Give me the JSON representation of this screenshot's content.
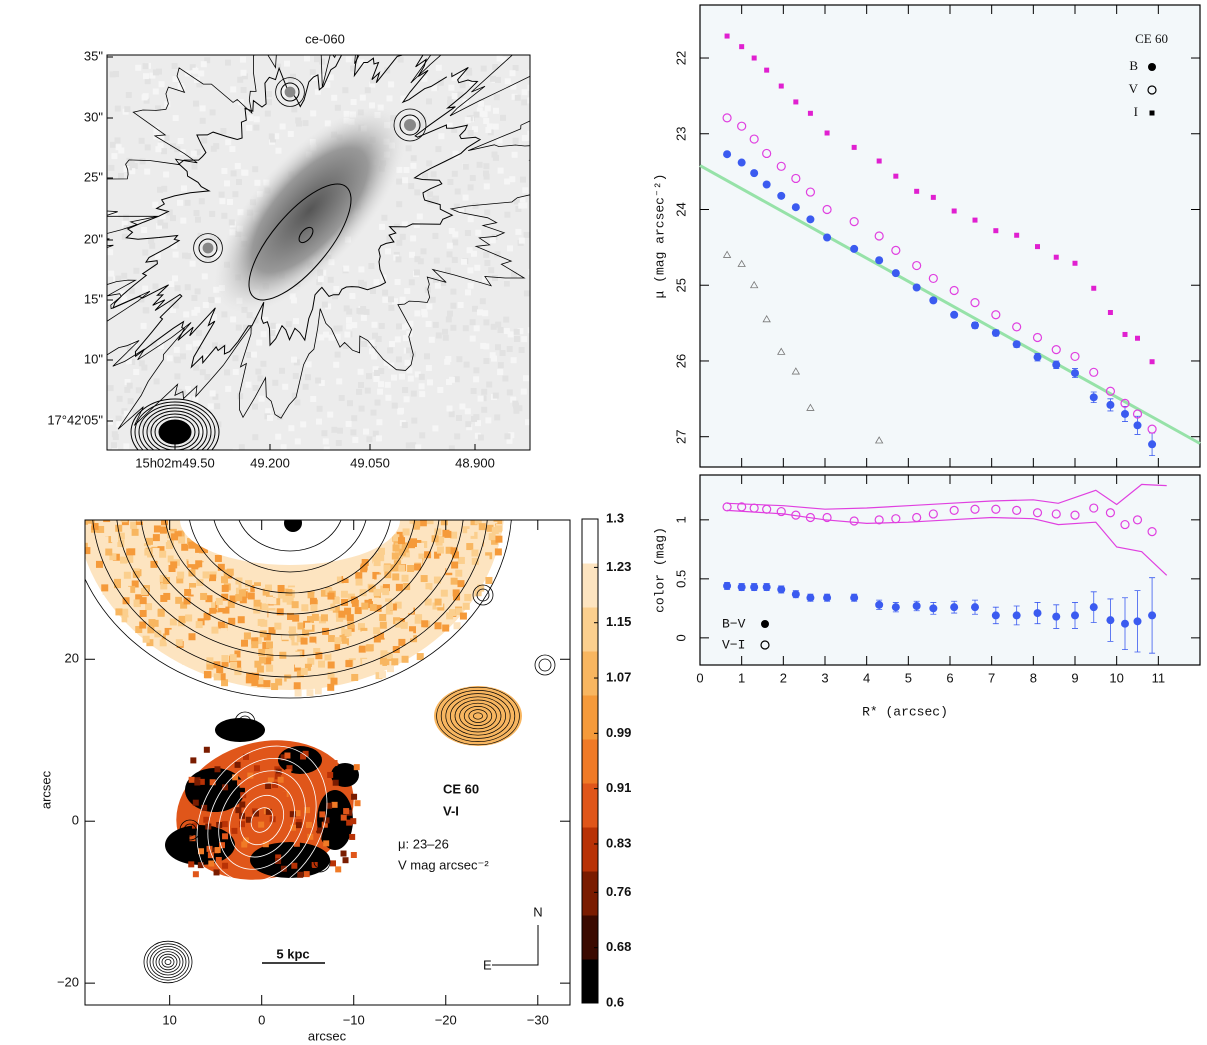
{
  "chart_data": [
    {
      "type": "image",
      "title": "ce-060",
      "ytick_labels": [
        "35\"",
        "30\"",
        "25\"",
        "20\"",
        "15\"",
        "10\"",
        "17°42'05\""
      ],
      "xtick_labels": [
        "15h02m49.50",
        "49.200",
        "49.050",
        "48.900"
      ]
    },
    {
      "type": "scatter",
      "ylabel": "μ (mag arcsec⁻²)",
      "xlim": [
        0,
        12
      ],
      "ylim": [
        27.4,
        21.3
      ],
      "xticks": [
        0,
        1,
        2,
        3,
        4,
        5,
        6,
        7,
        8,
        9,
        10,
        11
      ],
      "yticks": [
        22,
        23,
        24,
        25,
        26,
        27
      ],
      "xtick_labels": false,
      "legend": {
        "title": "CE 60",
        "position": "top-right"
      },
      "series": [
        {
          "color": "#96e2a8",
          "marker": "line",
          "x": [
            0,
            12
          ],
          "values": [
            23.42,
            27.09
          ]
        },
        {
          "color": "#777777",
          "marker": "triangle",
          "x": [
            0.65,
            1.0,
            1.3,
            1.6,
            1.95,
            2.3,
            2.65,
            4.3
          ],
          "values": [
            24.6,
            24.72,
            25.0,
            25.45,
            25.88,
            26.14,
            26.62,
            27.05
          ]
        },
        {
          "name": "B",
          "color": "#3b5bf0",
          "marker": "filled-circle",
          "x": [
            0.65,
            1.0,
            1.3,
            1.6,
            1.95,
            2.3,
            2.65,
            3.05,
            3.7,
            4.3,
            4.7,
            5.2,
            5.6,
            6.1,
            6.6,
            7.1,
            7.6,
            8.1,
            8.55,
            9.0,
            9.45,
            9.85,
            10.2,
            10.5,
            10.85
          ],
          "values": [
            23.27,
            23.38,
            23.52,
            23.67,
            23.82,
            23.97,
            24.13,
            24.37,
            24.52,
            24.67,
            24.84,
            25.03,
            25.2,
            25.39,
            25.53,
            25.63,
            25.78,
            25.95,
            26.05,
            26.16,
            26.48,
            26.58,
            26.7,
            26.85,
            27.1
          ],
          "errors": [
            0.02,
            0.02,
            0.02,
            0.02,
            0.02,
            0.02,
            0.02,
            0.02,
            0.02,
            0.03,
            0.03,
            0.03,
            0.03,
            0.03,
            0.04,
            0.04,
            0.04,
            0.05,
            0.05,
            0.06,
            0.07,
            0.08,
            0.1,
            0.12,
            0.15
          ]
        },
        {
          "name": "V",
          "color": "#e040e0",
          "marker": "open-circle",
          "x": [
            0.65,
            1.0,
            1.3,
            1.6,
            1.95,
            2.3,
            2.65,
            3.05,
            3.7,
            4.3,
            4.7,
            5.2,
            5.6,
            6.1,
            6.6,
            7.1,
            7.6,
            8.1,
            8.55,
            9.0,
            9.45,
            9.85,
            10.2,
            10.5,
            10.85
          ],
          "values": [
            22.79,
            22.9,
            23.07,
            23.26,
            23.43,
            23.59,
            23.77,
            24.0,
            24.16,
            24.35,
            24.54,
            24.74,
            24.91,
            25.07,
            25.23,
            25.39,
            25.55,
            25.69,
            25.85,
            25.94,
            26.15,
            26.4,
            26.56,
            26.7,
            26.9
          ]
        },
        {
          "name": "I",
          "color": "#e020d0",
          "marker": "square",
          "x": [
            0.65,
            1.0,
            1.3,
            1.6,
            1.95,
            2.3,
            2.65,
            3.05,
            3.7,
            4.3,
            4.7,
            5.2,
            5.6,
            6.1,
            6.6,
            7.1,
            7.6,
            8.1,
            8.55,
            9.0,
            9.45,
            9.85,
            10.2,
            10.5,
            10.85
          ],
          "values": [
            21.71,
            21.85,
            22.0,
            22.16,
            22.37,
            22.58,
            22.73,
            22.99,
            23.18,
            23.36,
            23.56,
            23.76,
            23.84,
            24.02,
            24.14,
            24.28,
            24.34,
            24.49,
            24.63,
            24.71,
            25.04,
            25.36,
            25.65,
            25.7,
            26.01
          ]
        }
      ]
    },
    {
      "type": "scatter",
      "xlabel": "R* (arcsec)",
      "ylabel": "color (mag)",
      "xlim": [
        0,
        12
      ],
      "ylim": [
        -0.23,
        1.38
      ],
      "xticks": [
        0,
        1,
        2,
        3,
        4,
        5,
        6,
        7,
        8,
        9,
        10,
        11
      ],
      "yticks": [
        0,
        0.5,
        1
      ],
      "xtick_labels": true,
      "legend": {
        "position": "bottom-left"
      },
      "series": [
        {
          "color": "#e040e0",
          "marker": "line",
          "x": [
            0.65,
            2,
            3,
            4,
            5,
            6,
            7,
            8,
            8.6,
            9.5,
            10.0,
            10.6,
            11.2
          ],
          "values": [
            1.14,
            1.12,
            1.09,
            1.1,
            1.12,
            1.14,
            1.16,
            1.17,
            1.14,
            1.25,
            1.13,
            1.3,
            1.29
          ]
        },
        {
          "color": "#e040e0",
          "marker": "line",
          "x": [
            0.65,
            2,
            3,
            4,
            5,
            6,
            7,
            8,
            8.6,
            9.5,
            10.0,
            10.6,
            11.2
          ],
          "values": [
            1.08,
            1.05,
            1.0,
            0.97,
            0.98,
            1.0,
            1.02,
            1.01,
            0.96,
            0.98,
            0.77,
            0.73,
            0.53
          ]
        },
        {
          "name": "B−V",
          "color": "#3b5bf0",
          "marker": "filled-circle",
          "x": [
            0.65,
            1.0,
            1.3,
            1.6,
            1.95,
            2.3,
            2.65,
            3.05,
            3.7,
            4.3,
            4.7,
            5.2,
            5.6,
            6.1,
            6.6,
            7.1,
            7.6,
            8.1,
            8.55,
            9.0,
            9.45,
            9.85,
            10.2,
            10.5,
            10.85
          ],
          "values": [
            0.44,
            0.43,
            0.43,
            0.43,
            0.41,
            0.37,
            0.34,
            0.34,
            0.34,
            0.28,
            0.26,
            0.27,
            0.25,
            0.26,
            0.26,
            0.19,
            0.19,
            0.21,
            0.18,
            0.19,
            0.26,
            0.15,
            0.12,
            0.14,
            0.19
          ],
          "errors": [
            0.03,
            0.03,
            0.03,
            0.03,
            0.03,
            0.03,
            0.03,
            0.03,
            0.03,
            0.04,
            0.04,
            0.04,
            0.05,
            0.05,
            0.06,
            0.07,
            0.08,
            0.09,
            0.1,
            0.11,
            0.13,
            0.18,
            0.22,
            0.26,
            0.32
          ]
        },
        {
          "name": "V−I",
          "color": "#e040e0",
          "marker": "open-circle",
          "x": [
            0.65,
            1.0,
            1.3,
            1.6,
            1.95,
            2.3,
            2.65,
            3.05,
            3.7,
            4.3,
            4.7,
            5.2,
            5.6,
            6.1,
            6.6,
            7.1,
            7.6,
            8.1,
            8.55,
            9.0,
            9.45,
            9.85,
            10.2,
            10.5,
            10.85
          ],
          "values": [
            1.11,
            1.11,
            1.1,
            1.09,
            1.07,
            1.04,
            1.02,
            1.02,
            0.99,
            1.0,
            1.01,
            1.02,
            1.05,
            1.08,
            1.09,
            1.09,
            1.08,
            1.06,
            1.05,
            1.04,
            1.1,
            1.06,
            0.96,
            1.0,
            0.9
          ]
        }
      ]
    },
    {
      "type": "colormap",
      "xlabel": "arcsec",
      "ylabel": "arcsec",
      "xlim": [
        19.2,
        -33.5
      ],
      "ylim": [
        -22.7,
        37.2
      ],
      "xticks": [
        10,
        0,
        {
          "value": -10,
          "label": "−10"
        },
        {
          "value": -20,
          "label": "−20"
        },
        {
          "value": -30,
          "label": "−30"
        }
      ],
      "yticks": [
        {
          "value": -20,
          "label": "−20"
        },
        0,
        20
      ],
      "annotations": [
        "CE 60",
        "V-I",
        "μ: 23–26",
        "V mag arcsec⁻²",
        "5 kpc",
        "N",
        "E"
      ],
      "colorbar": {
        "lim": [
          0.6,
          1.3
        ],
        "ticks": [
          1.3,
          1.23,
          1.15,
          1.07,
          0.99,
          0.91,
          0.83,
          0.76,
          0.68,
          0.6
        ],
        "colors": [
          "#000000",
          "#3a0a00",
          "#7a1c00",
          "#b83206",
          "#e0561a",
          "#f07a26",
          "#f59a3a",
          "#f8b660",
          "#fbcf8e",
          "#fde4c0",
          "#ffffff"
        ]
      }
    }
  ]
}
